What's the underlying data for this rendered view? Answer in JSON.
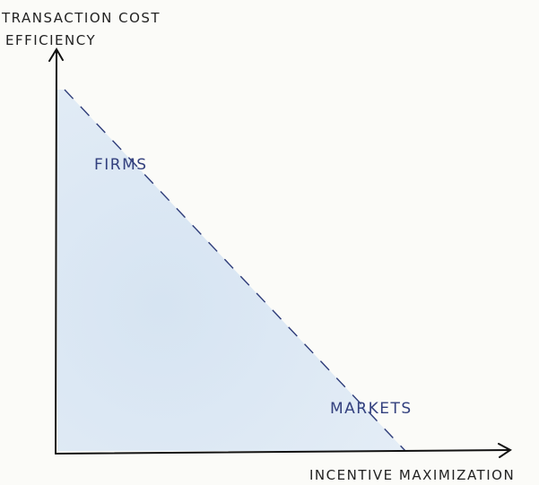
{
  "axes": {
    "y_label": [
      "TRANSACTION COST",
      "EFFICIENCY"
    ],
    "x_label": "INCENTIVE MAXIMIZATION"
  },
  "regions": {
    "upper_left": "FIRMS",
    "lower_right": "MARKETS"
  }
}
